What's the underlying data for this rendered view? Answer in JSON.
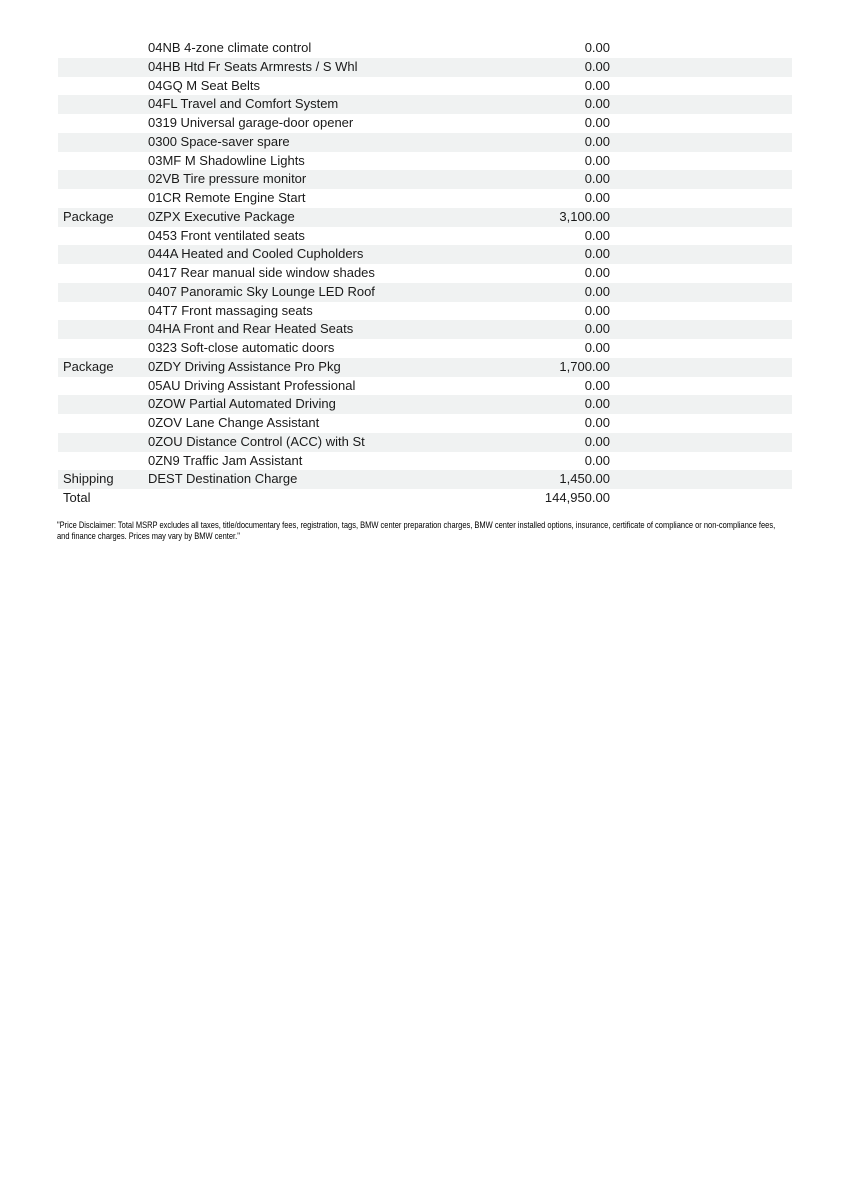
{
  "page": {
    "background": "#ffffff",
    "stripe_color": "#f0f2f2",
    "text_color": "#1a1a1a"
  },
  "table": {
    "columns": [
      "category",
      "item",
      "price"
    ],
    "rows": [
      {
        "category": "",
        "item": "04NB 4-zone climate control",
        "price": "0.00"
      },
      {
        "category": "",
        "item": "04HB Htd Fr Seats Armrests / S Whl",
        "price": "0.00"
      },
      {
        "category": "",
        "item": "04GQ M Seat Belts",
        "price": "0.00"
      },
      {
        "category": "",
        "item": "04FL Travel and Comfort System",
        "price": "0.00"
      },
      {
        "category": "",
        "item": "0319 Universal garage-door opener",
        "price": "0.00"
      },
      {
        "category": "",
        "item": "0300 Space-saver spare",
        "price": "0.00"
      },
      {
        "category": "",
        "item": "03MF M Shadowline Lights",
        "price": "0.00"
      },
      {
        "category": "",
        "item": "02VB Tire pressure monitor",
        "price": "0.00"
      },
      {
        "category": "",
        "item": "01CR Remote Engine Start",
        "price": "0.00"
      },
      {
        "category": "Package",
        "item": "0ZPX Executive Package",
        "price": "3,100.00"
      },
      {
        "category": "",
        "item": "0453 Front ventilated seats",
        "price": "0.00"
      },
      {
        "category": "",
        "item": "044A Heated and Cooled Cupholders",
        "price": "0.00"
      },
      {
        "category": "",
        "item": "0417 Rear manual side window shades",
        "price": "0.00"
      },
      {
        "category": "",
        "item": "0407 Panoramic Sky Lounge LED Roof",
        "price": "0.00"
      },
      {
        "category": "",
        "item": "04T7 Front massaging seats",
        "price": "0.00"
      },
      {
        "category": "",
        "item": "04HA Front and Rear Heated Seats",
        "price": "0.00"
      },
      {
        "category": "",
        "item": "0323 Soft-close automatic doors",
        "price": "0.00"
      },
      {
        "category": "Package",
        "item": "0ZDY Driving Assistance Pro Pkg",
        "price": "1,700.00"
      },
      {
        "category": "",
        "item": "05AU Driving Assistant Professional",
        "price": "0.00"
      },
      {
        "category": "",
        "item": "0ZOW Partial Automated Driving",
        "price": "0.00"
      },
      {
        "category": "",
        "item": "0ZOV Lane Change Assistant",
        "price": "0.00"
      },
      {
        "category": "",
        "item": "0ZOU Distance Control (ACC) with St",
        "price": "0.00"
      },
      {
        "category": "",
        "item": "0ZN9 Traffic Jam Assistant",
        "price": "0.00"
      },
      {
        "category": "Shipping",
        "item": "DEST Destination Charge",
        "price": "1,450.00"
      },
      {
        "category": "Total",
        "item": "",
        "price": "144,950.00"
      }
    ]
  },
  "disclaimer": "\"Price Disclaimer: Total MSRP excludes all taxes, title/documentary fees, registration, tags, BMW center preparation charges, BMW center installed options, insurance, certificate of compliance or non-compliance fees, and finance charges. Prices may vary by BMW center.\""
}
